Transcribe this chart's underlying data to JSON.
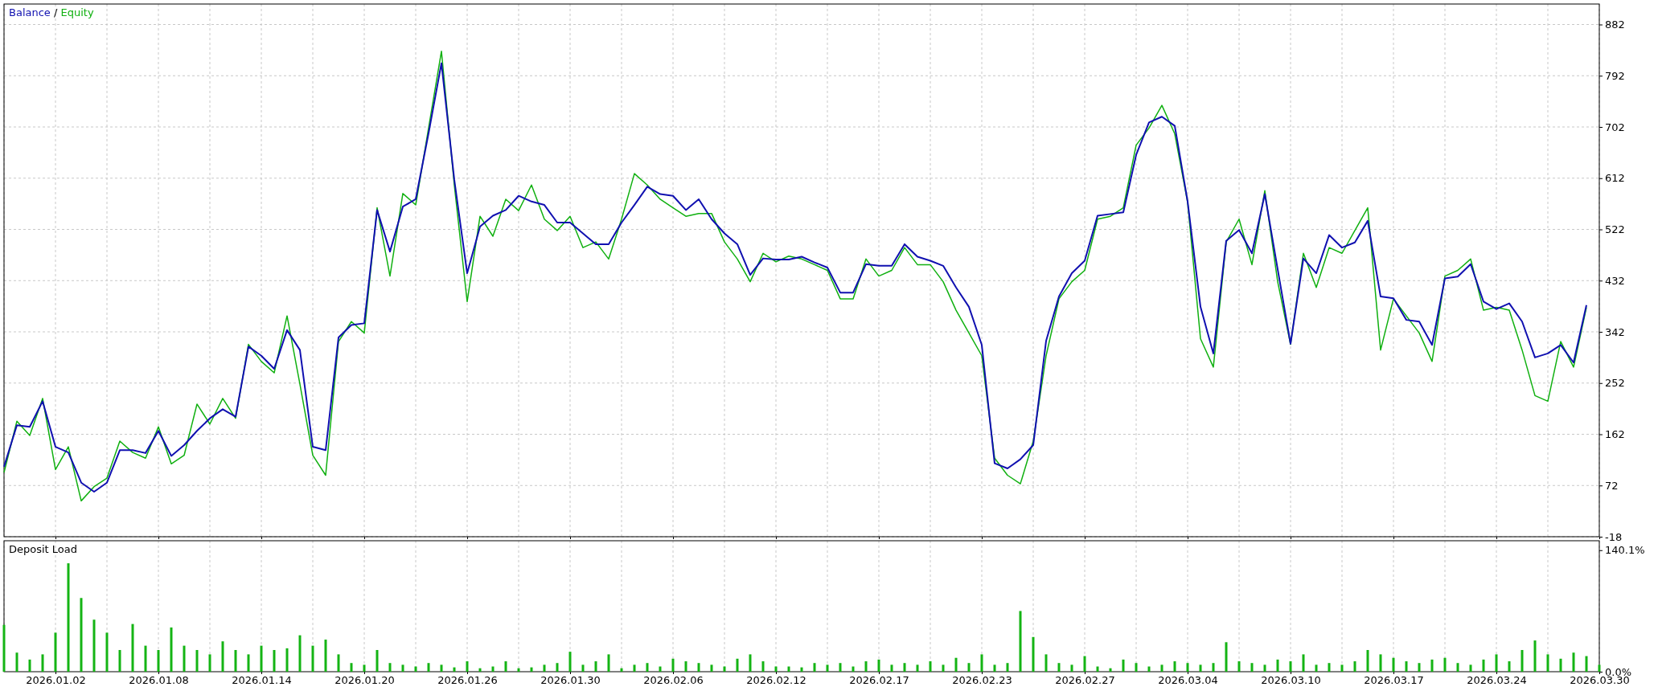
{
  "chart_data": [
    {
      "type": "line",
      "legend": "top left",
      "grid": true,
      "tick_labels": "y",
      "line_style": "solid",
      "annotations": [
        "/"
      ],
      "categories": [
        null,
        null,
        null,
        null,
        "2026.01.02",
        null,
        null,
        null,
        null,
        null,
        null,
        null,
        "2026.01.08",
        null,
        null,
        null,
        null,
        null,
        null,
        null,
        "2026.01.14",
        null,
        null,
        null,
        null,
        null,
        null,
        null,
        "2026.01.20",
        null,
        null,
        null,
        null,
        null,
        null,
        null,
        "2026.01.26",
        null,
        null,
        null,
        null,
        null,
        null,
        null,
        "2026.01.30",
        null,
        null,
        null,
        null,
        null,
        null,
        null,
        "2026.02.06",
        null,
        null,
        null,
        null,
        null,
        null,
        null,
        "2026.02.12",
        null,
        null,
        null,
        null,
        null,
        null,
        null,
        "2026.02.17",
        null,
        null,
        null,
        null,
        null,
        null,
        null,
        "2026.02.23",
        null,
        null,
        null,
        null,
        null,
        null,
        null,
        "2026.02.27",
        null,
        null,
        null,
        null,
        null,
        null,
        null,
        "2026.03.04",
        null,
        null,
        null,
        null,
        null,
        null,
        null,
        "2026.03.10",
        null,
        null,
        null,
        null,
        null,
        null,
        null,
        "2026.03.17",
        null,
        null,
        null,
        null,
        null,
        null,
        null,
        "2026.03.24",
        null,
        null,
        null,
        null,
        null,
        null,
        null,
        "2026.03.30"
      ],
      "ylim": [
        -18,
        918
      ],
      "yticks": [
        -18,
        72,
        162,
        252,
        342,
        432,
        522,
        612,
        702,
        792,
        882
      ],
      "series": [
        {
          "name": "Equity",
          "color": "#10b010",
          "values": [
            95,
            185,
            160,
            225,
            100,
            140,
            45,
            70,
            85,
            150,
            130,
            120,
            175,
            110,
            125,
            215,
            180,
            225,
            190,
            320,
            290,
            270,
            370,
            250,
            125,
            90,
            325,
            360,
            340,
            560,
            440,
            585,
            565,
            700,
            835,
            600,
            395,
            545,
            510,
            575,
            555,
            600,
            540,
            520,
            545,
            490,
            500,
            470,
            540,
            620,
            600,
            575,
            560,
            545,
            550,
            550,
            500,
            470,
            430,
            480,
            465,
            475,
            470,
            460,
            450,
            400,
            400,
            470,
            440,
            450,
            490,
            460,
            460,
            430,
            380,
            340,
            300,
            120,
            90,
            75,
            150,
            300,
            400,
            430,
            450,
            540,
            545,
            560,
            670,
            700,
            740,
            690,
            570,
            330,
            280,
            500,
            540,
            460,
            590,
            430,
            320,
            480,
            420,
            490,
            480,
            520,
            560,
            310,
            400,
            370,
            340,
            290,
            440,
            450,
            470,
            380,
            385,
            380,
            310,
            230,
            220,
            325,
            280,
            385,
            null
          ]
        },
        {
          "name": "Balance",
          "color": "#1010b0",
          "values": [
            105,
            178,
            175,
            220,
            140,
            130,
            77,
            61,
            77,
            134,
            134,
            129,
            168,
            124,
            143,
            168,
            190,
            206,
            193,
            316,
            300,
            277,
            345,
            310,
            140,
            134,
            332,
            354,
            357,
            556,
            483,
            562,
            575,
            691,
            814,
            609,
            445,
            527,
            546,
            556,
            581,
            571,
            565,
            534,
            534,
            515,
            496,
            496,
            534,
            565,
            597,
            584,
            581,
            556,
            575,
            540,
            515,
            496,
            442,
            471,
            469,
            469,
            474,
            464,
            455,
            411,
            411,
            461,
            458,
            458,
            496,
            474,
            467,
            458,
            420,
            386,
            319,
            111,
            102,
            118,
            143,
            326,
            404,
            445,
            467,
            546,
            549,
            552,
            653,
            710,
            720,
            704,
            571,
            386,
            304,
            502,
            521,
            480,
            584,
            452,
            321,
            471,
            445,
            512,
            490,
            499,
            537,
            404,
            401,
            363,
            360,
            319,
            436,
            439,
            461,
            395,
            382,
            392,
            360,
            297,
            304,
            319,
            288,
            389,
            null
          ]
        }
      ]
    },
    {
      "type": "bar",
      "title": "Deposit Load",
      "grid": "x",
      "color": "#14b414",
      "categories": [
        null,
        null,
        null,
        null,
        "2026.01.02",
        null,
        null,
        null,
        null,
        null,
        null,
        null,
        "2026.01.08",
        null,
        null,
        null,
        null,
        null,
        null,
        null,
        "2026.01.14",
        null,
        null,
        null,
        null,
        null,
        null,
        null,
        "2026.01.20",
        null,
        null,
        null,
        null,
        null,
        null,
        null,
        "2026.01.26",
        null,
        null,
        null,
        null,
        null,
        null,
        null,
        "2026.01.30",
        null,
        null,
        null,
        null,
        null,
        null,
        null,
        "2026.02.06",
        null,
        null,
        null,
        null,
        null,
        null,
        null,
        "2026.02.12",
        null,
        null,
        null,
        null,
        null,
        null,
        null,
        "2026.02.17",
        null,
        null,
        null,
        null,
        null,
        null,
        null,
        "2026.02.23",
        null,
        null,
        null,
        null,
        null,
        null,
        null,
        "2026.02.27",
        null,
        null,
        null,
        null,
        null,
        null,
        null,
        "2026.03.04",
        null,
        null,
        null,
        null,
        null,
        null,
        null,
        "2026.03.10",
        null,
        null,
        null,
        null,
        null,
        null,
        null,
        "2026.03.17",
        null,
        null,
        null,
        null,
        null,
        null,
        null,
        "2026.03.24",
        null,
        null,
        null,
        null,
        null,
        null,
        null,
        "2026.03.30"
      ],
      "ylim": [
        0,
        151
      ],
      "yticks": [
        {
          "value": 0,
          "label": "0.0%"
        },
        {
          "value": 140.1,
          "label": "140.1%"
        }
      ],
      "values": [
        54,
        22,
        14,
        20,
        45,
        125,
        85,
        60,
        45,
        25,
        55,
        30,
        25,
        51,
        30,
        25,
        20,
        35,
        25,
        20,
        30,
        25,
        27,
        42,
        30,
        37,
        20,
        10,
        8,
        25,
        10,
        8,
        6,
        10,
        8,
        5,
        12,
        4,
        6,
        12,
        4,
        5,
        8,
        10,
        23,
        8,
        12,
        20,
        4,
        8,
        10,
        6,
        15,
        12,
        10,
        8,
        6,
        15,
        20,
        12,
        6,
        6,
        5,
        10,
        8,
        10,
        6,
        12,
        14,
        8,
        10,
        8,
        12,
        8,
        16,
        10,
        20,
        8,
        10,
        70,
        40,
        20,
        10,
        8,
        18,
        6,
        4,
        14,
        10,
        6,
        8,
        12,
        10,
        8,
        10,
        34,
        12,
        10,
        8,
        14,
        12,
        20,
        8,
        10,
        8,
        12,
        25,
        20,
        16,
        12,
        10,
        14,
        16,
        10,
        8,
        14,
        20,
        12,
        25,
        36,
        20,
        15,
        22,
        18,
        8
      ]
    }
  ]
}
